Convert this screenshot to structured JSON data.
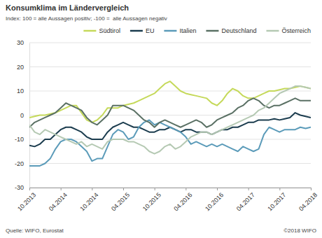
{
  "chart_data": {
    "type": "line",
    "title": "Konsumklima im Ländervergleich",
    "subtitle": "Index: 100 = alle Aussagen positiv; -100 =  alle Aussagen negativ",
    "source": "Quelle: WIFO, Eurostat",
    "copyright": "©2018 WIFO",
    "categories": [
      "10.2013",
      null,
      null,
      null,
      null,
      null,
      "04.2014",
      null,
      null,
      null,
      null,
      null,
      "10.2014",
      null,
      null,
      null,
      null,
      null,
      "04.2015",
      null,
      null,
      null,
      null,
      null,
      "10.2015",
      null,
      null,
      null,
      null,
      null,
      "04.2016",
      null,
      null,
      null,
      null,
      null,
      "10.2016",
      null,
      null,
      null,
      null,
      null,
      "04.2017",
      null,
      null,
      null,
      null,
      null,
      "10.2017",
      null,
      null,
      null,
      null,
      null,
      "04.2018"
    ],
    "series": [
      {
        "name": "Südtirol",
        "color": "#c5d95a",
        "values": [
          -1,
          -0.5,
          0,
          0,
          0.5,
          1,
          2,
          3,
          4,
          4,
          1,
          -2,
          -3,
          -2,
          0,
          3,
          3,
          3,
          4,
          4.5,
          5,
          6,
          7,
          8,
          9,
          11,
          13,
          14,
          12,
          10,
          9,
          8.5,
          8,
          7.5,
          7,
          5,
          4,
          6,
          9,
          11,
          10,
          8,
          7,
          7,
          8,
          9,
          10,
          10,
          10.5,
          11,
          11,
          11.5,
          12,
          11.5,
          11
        ]
      },
      {
        "name": "EU",
        "color": "#1b3c4e",
        "values": [
          -12.5,
          -13,
          -12,
          -10,
          -10,
          -8,
          -6,
          -5,
          -5,
          -6,
          -7,
          -9,
          -10,
          -10,
          -10,
          -7,
          -5,
          -4,
          -3,
          -4,
          -5,
          -5,
          -6,
          -7,
          -7,
          -6,
          -6,
          -5,
          -6,
          -7,
          -6,
          -6,
          -7,
          -7,
          -7,
          -8,
          -7,
          -6,
          -6,
          -5,
          -5,
          -4,
          -3,
          -3,
          -2,
          -2,
          -2,
          -1.5,
          -2,
          -1.5,
          -1,
          1,
          0,
          -0.5,
          -1
        ]
      },
      {
        "name": "Italien",
        "color": "#5b9bb9",
        "values": [
          -21,
          -21,
          -21,
          -20,
          -18,
          -14,
          -11,
          -10,
          -10,
          -11,
          -13,
          -15,
          -19,
          -18,
          -18,
          -13,
          -8,
          -6,
          -7,
          -10,
          -9,
          -5,
          -3,
          -2,
          -4,
          -3,
          -4,
          -5,
          -6,
          -7,
          -9,
          -12,
          -11,
          -12,
          -13,
          -12,
          -13,
          -12,
          -13,
          -14,
          -15,
          -13,
          -14,
          -15,
          -14,
          -8,
          -5,
          -6,
          -7,
          -6,
          -6,
          -6,
          -5,
          -5.5,
          -5
        ]
      },
      {
        "name": "Deutschland",
        "color": "#5a7064",
        "values": [
          -5,
          -3,
          -2,
          -1,
          0,
          1,
          3,
          5,
          4,
          3,
          2,
          -1,
          -3,
          -4,
          -2,
          0,
          4,
          4,
          4,
          3,
          2,
          0,
          -2,
          -3,
          -5,
          -3,
          -2,
          -3,
          -4,
          -5,
          -4,
          -3,
          -2,
          -3,
          -5,
          -4,
          -2,
          -1,
          0,
          1,
          3,
          4,
          6,
          7,
          6,
          4,
          3,
          4,
          4,
          5,
          6,
          7,
          6,
          6,
          6
        ]
      },
      {
        "name": "Österreich",
        "color": "#b5c9b3",
        "values": [
          -4,
          -7,
          -8,
          -6,
          -7,
          -8,
          -9,
          -10,
          -11,
          -12,
          -11,
          -13,
          -12,
          -13,
          -14,
          -11,
          -10,
          -10,
          -10,
          -11,
          -11,
          -12,
          -13,
          -15,
          -16,
          -15,
          -13,
          -12,
          -14,
          -13,
          -11,
          -9,
          -8,
          -7,
          -7,
          -8,
          -7,
          -6,
          -5,
          -4,
          -3,
          -2,
          -1,
          0,
          2,
          3,
          5,
          7,
          9,
          10,
          11,
          12,
          12,
          11.5,
          11
        ]
      }
    ],
    "ylim": [
      -30,
      30
    ],
    "yticks": [
      -30,
      -20,
      -10,
      0,
      10,
      20,
      30
    ],
    "grid": true,
    "legend": "top"
  }
}
